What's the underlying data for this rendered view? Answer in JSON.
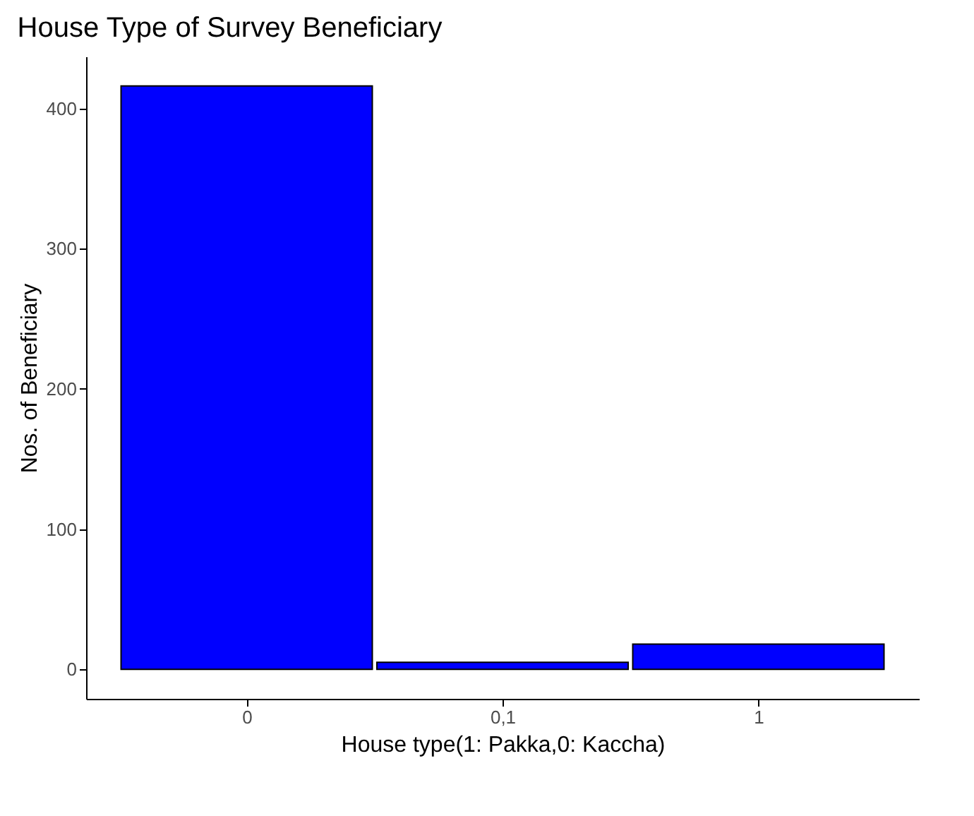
{
  "chart_data": {
    "type": "bar",
    "title": "House Type of Survey Beneficiary",
    "xlabel": "House type(1: Pakka,0: Kaccha)",
    "ylabel": "Nos. of Beneficiary",
    "categories": [
      "0",
      "0,1",
      "1"
    ],
    "values": [
      416,
      5,
      18
    ],
    "color": "#0000ff",
    "ylim": [
      -21,
      437
    ],
    "yticks": [
      0,
      100,
      200,
      300,
      400
    ],
    "grid": false
  }
}
